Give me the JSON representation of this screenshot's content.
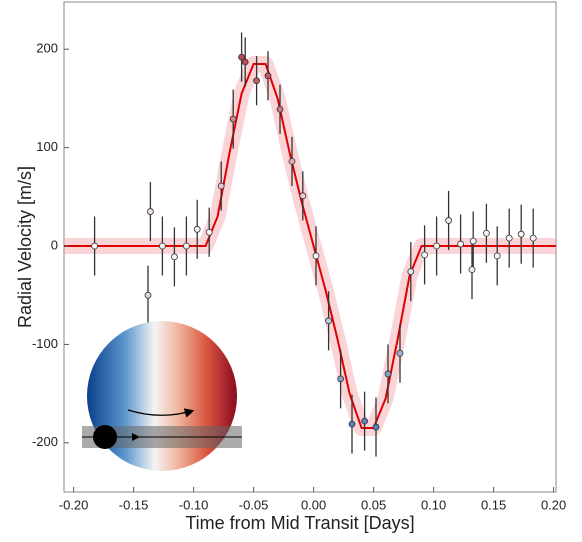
{
  "chart_data": {
    "type": "scatter",
    "xlabel": "Time from Mid Transit [Days]",
    "ylabel": "Radial Velocity [m/s]",
    "xlim": [
      -0.208,
      0.202
    ],
    "ylim": [
      -250,
      248
    ],
    "xticks": [
      {
        "value": -0.2,
        "label": "-0.20"
      },
      {
        "value": -0.15,
        "label": "-0.15"
      },
      {
        "value": -0.1,
        "label": "-0.10"
      },
      {
        "value": -0.05,
        "label": "-0.05"
      },
      {
        "value": 0,
        "label": "0.00"
      },
      {
        "value": 0.05,
        "label": "0.05"
      },
      {
        "value": 0.1,
        "label": "0.10"
      },
      {
        "value": 0.15,
        "label": "0.15"
      },
      {
        "value": 0.2,
        "label": "0.20"
      }
    ],
    "yticks": [
      -200,
      -100,
      0,
      100,
      200
    ],
    "points": {
      "x": [
        -0.1825,
        -0.138,
        -0.136,
        -0.126,
        -0.116,
        -0.106,
        -0.097,
        -0.087,
        -0.077,
        -0.067,
        -0.06,
        -0.057,
        -0.0475,
        -0.038,
        -0.028,
        -0.018,
        -0.009,
        0.002,
        0.0125,
        0.0225,
        0.032,
        0.0425,
        0.052,
        0.062,
        0.072,
        0.081,
        0.0925,
        0.1025,
        0.1125,
        0.1225,
        0.132,
        0.133,
        0.144,
        0.153,
        0.163,
        0.173,
        0.183
      ],
      "values": [
        0,
        -50,
        35,
        0,
        -11,
        0,
        17,
        14,
        61,
        129,
        192,
        187,
        168,
        173,
        139,
        86,
        51,
        -10,
        -76,
        -135,
        -181,
        -178,
        -184,
        -130,
        -109,
        -26,
        -9,
        0,
        26,
        2,
        -24,
        5,
        13,
        -10,
        8,
        12,
        8
      ],
      "errors": [
        30,
        30,
        30,
        30,
        30,
        30,
        30,
        25,
        25,
        30,
        25,
        25,
        25,
        25,
        25,
        25,
        25,
        30,
        30,
        30,
        30,
        30,
        30,
        30,
        30,
        30,
        30,
        30,
        30,
        30,
        30,
        30,
        30,
        30,
        30,
        30,
        30
      ],
      "colormap": [
        "#1f4e9a",
        "#ffffff",
        "#a01020"
      ]
    },
    "model": {
      "x": [
        -0.208,
        -0.09,
        -0.08,
        -0.07,
        -0.06,
        -0.05,
        -0.04,
        -0.03,
        -0.02,
        -0.01,
        0,
        0.01,
        0.02,
        0.03,
        0.04,
        0.05,
        0.06,
        0.07,
        0.08,
        0.09,
        0.202
      ],
      "values": [
        0,
        0,
        30,
        95,
        155,
        185,
        185,
        150,
        95,
        45,
        0,
        -45,
        -95,
        -150,
        -185,
        -185,
        -155,
        -95,
        -30,
        0,
        0
      ],
      "color": "#e00000",
      "band_color": "#f7a0a8"
    }
  }
}
